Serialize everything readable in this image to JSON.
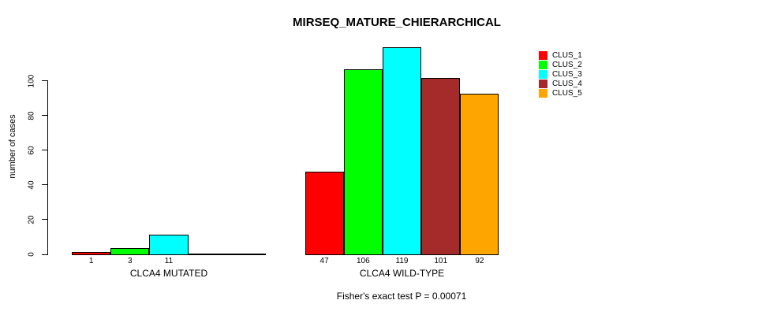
{
  "chart_data": {
    "type": "bar",
    "title": "MIRSEQ_MATURE_CHIERARCHICAL",
    "ylabel": "number of cases",
    "xlabel": "",
    "ylim": [
      0,
      100
    ],
    "yticks": [
      0,
      20,
      40,
      60,
      80,
      100
    ],
    "grid": false,
    "legend_position": "top-right",
    "legend": [
      "CLUS_1",
      "CLUS_2",
      "CLUS_3",
      "CLUS_4",
      "CLUS_5"
    ],
    "series_colors": [
      "#FF0000",
      "#00FF00",
      "#00FFFF",
      "#A52A2A",
      "#FFA500"
    ],
    "axis_color": "#000000",
    "background_color": "#FFFFFF",
    "groups": [
      {
        "label": "CLCA4 MUTATED",
        "values": [
          1,
          3,
          11,
          0,
          0
        ],
        "bar_labels": [
          "1",
          "3",
          "11",
          "",
          ""
        ]
      },
      {
        "label": "CLCA4 WILD-TYPE",
        "values": [
          47,
          106,
          119,
          101,
          92
        ],
        "bar_labels": [
          "47",
          "106",
          "119",
          "101",
          "92"
        ]
      }
    ],
    "caption": "Fisher's exact test P = 0.00071"
  }
}
